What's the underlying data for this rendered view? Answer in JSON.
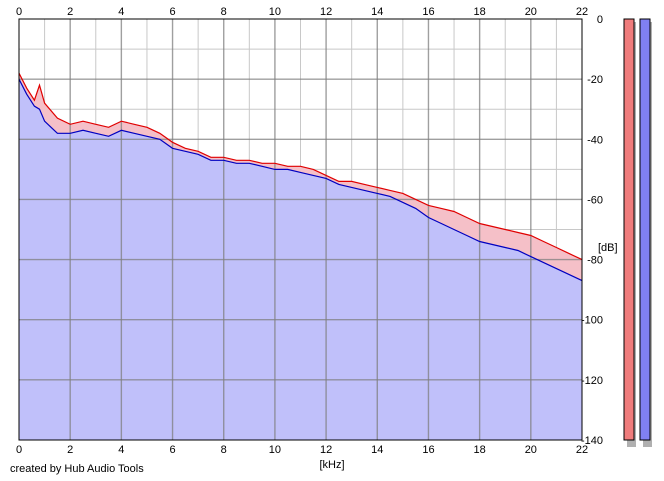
{
  "footer": {
    "credit": "created by Hub Audio Tools"
  },
  "colors": {
    "fill": "#c0c0fa",
    "left_line": "#e00000",
    "right_line": "#0000c0",
    "left_fill_tint": "#f5c0c8",
    "grid_major": "#7f7f7f",
    "grid_minor": "#c8c8c8",
    "left_meter": "#ef7c7c",
    "right_meter": "#8080f2"
  },
  "chart_data": {
    "type": "area",
    "title": "",
    "xlabel": "[kHz]",
    "ylabel": "[dB]",
    "xlim": [
      0,
      22
    ],
    "ylim": [
      -140,
      0
    ],
    "x_ticks": [
      "0",
      "2",
      "4",
      "6",
      "8",
      "10",
      "12",
      "14",
      "16",
      "18",
      "20",
      "22"
    ],
    "y_ticks": [
      "0",
      "-20",
      "-40",
      "-60",
      "-80",
      "-100",
      "-120",
      "-140"
    ],
    "grid": true,
    "legend": "none",
    "series": [
      {
        "color": "#e00000",
        "x": [
          0,
          0.3,
          0.6,
          0.8,
          1,
          1.5,
          2,
          2.5,
          3,
          3.5,
          4,
          4.5,
          5,
          5.5,
          6,
          6.5,
          7,
          7.5,
          8,
          8.5,
          9,
          9.5,
          10,
          10.5,
          11,
          11.5,
          12,
          12.5,
          13,
          13.5,
          14,
          14.5,
          15,
          15.5,
          16,
          16.5,
          17,
          17.5,
          18,
          18.5,
          19,
          19.5,
          20,
          20.5,
          21,
          21.5,
          22
        ],
        "values": [
          -18,
          -23,
          -27,
          -22,
          -28,
          -33,
          -35,
          -34,
          -35,
          -36,
          -34,
          -35,
          -36,
          -38,
          -41,
          -43,
          -44,
          -46,
          -46,
          -47,
          -47,
          -48,
          -48,
          -49,
          -49,
          -50,
          -52,
          -54,
          -54,
          -55,
          -56,
          -57,
          -58,
          -60,
          -62,
          -63,
          -64,
          -66,
          -68,
          -69,
          -70,
          -71,
          -72,
          -74,
          -76,
          -78,
          -80
        ]
      },
      {
        "color": "#0000c0",
        "x": [
          0,
          0.3,
          0.6,
          0.8,
          1,
          1.5,
          2,
          2.5,
          3,
          3.5,
          4,
          4.5,
          5,
          5.5,
          6,
          6.5,
          7,
          7.5,
          8,
          8.5,
          9,
          9.5,
          10,
          10.5,
          11,
          11.5,
          12,
          12.5,
          13,
          13.5,
          14,
          14.5,
          15,
          15.5,
          16,
          16.5,
          17,
          17.5,
          18,
          18.5,
          19,
          19.5,
          20,
          20.5,
          21,
          21.5,
          22
        ],
        "values": [
          -20,
          -25,
          -29,
          -30,
          -34,
          -38,
          -38,
          -37,
          -38,
          -39,
          -37,
          -38,
          -39,
          -40,
          -43,
          -44,
          -45,
          -47,
          -47,
          -48,
          -48,
          -49,
          -50,
          -50,
          -51,
          -52,
          -53,
          -55,
          -56,
          -57,
          -58,
          -59,
          -61,
          -63,
          -66,
          -68,
          -70,
          -72,
          -74,
          -75,
          -76,
          -77,
          -79,
          -81,
          -83,
          -85,
          -87
        ]
      }
    ]
  }
}
